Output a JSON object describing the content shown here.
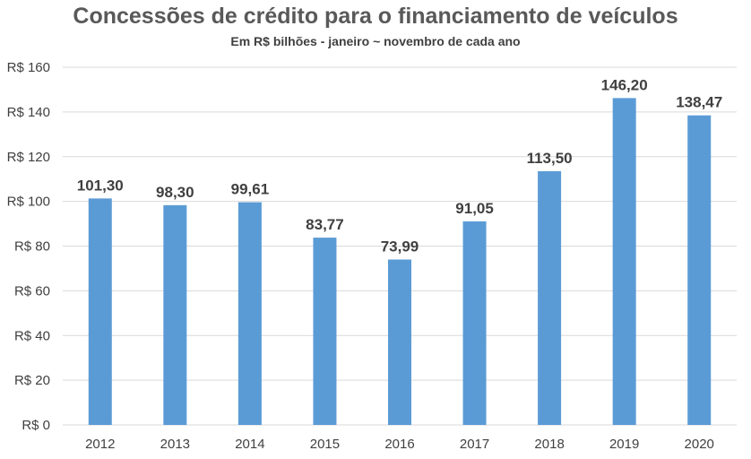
{
  "chart_data": {
    "type": "bar",
    "title": "Concessões de crédito para o financiamento de veículos",
    "subtitle": "Em R$ bilhões - janeiro ~ novembro de cada ano",
    "categories": [
      "2012",
      "2013",
      "2014",
      "2015",
      "2016",
      "2017",
      "2018",
      "2019",
      "2020"
    ],
    "values": [
      101.3,
      98.3,
      99.61,
      83.77,
      73.99,
      91.05,
      113.5,
      146.2,
      138.47
    ],
    "value_labels": [
      "101,30",
      "98,30",
      "99,61",
      "83,77",
      "73,99",
      "91,05",
      "113,50",
      "146,20",
      "138,47"
    ],
    "y_ticks": [
      0,
      20,
      40,
      60,
      80,
      100,
      120,
      140,
      160
    ],
    "y_tick_labels": [
      "R$ 0",
      "R$ 20",
      "R$ 40",
      "R$ 60",
      "R$ 80",
      "R$ 100",
      "R$ 120",
      "R$ 140",
      "R$ 160"
    ],
    "ylim": [
      0,
      160
    ],
    "xlabel": "",
    "ylabel": "",
    "grid": true,
    "legend": "none",
    "bar_color": "#5B9BD5",
    "grid_color": "#D9D9D9"
  }
}
